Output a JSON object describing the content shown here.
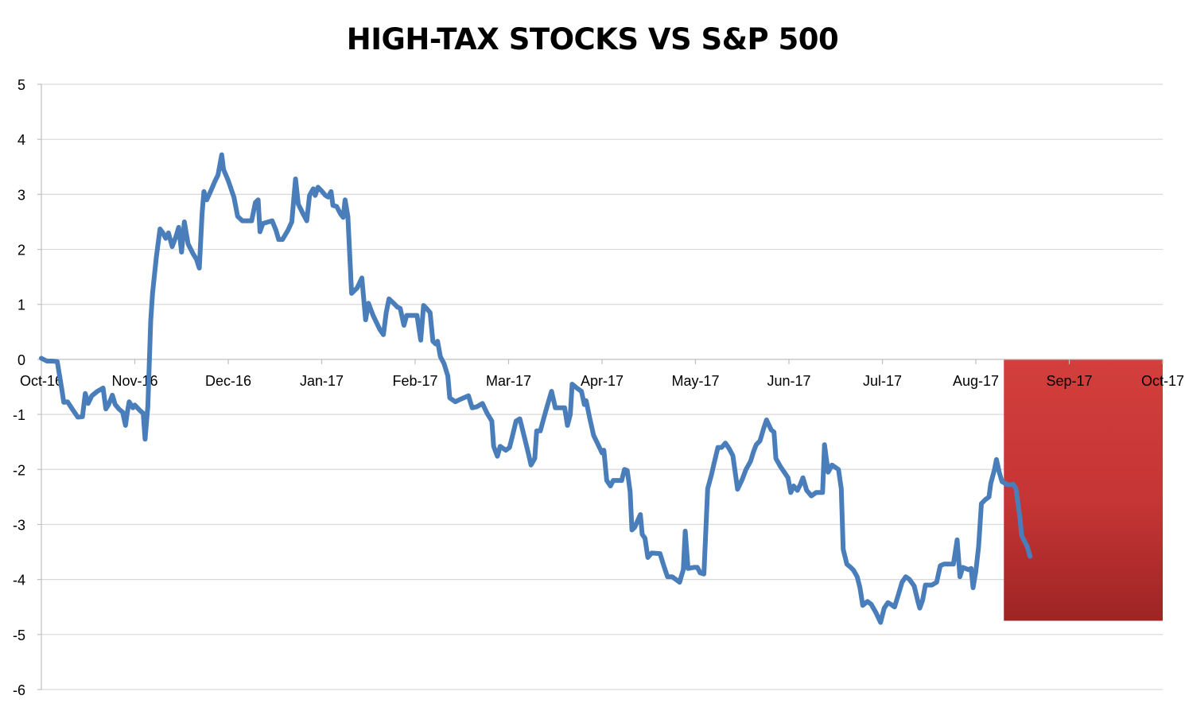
{
  "chart_data": {
    "type": "line",
    "title": "HIGH-TAX STOCKS VS S&P 500",
    "xlabel": "",
    "ylabel": "",
    "ylim": [
      -6,
      5
    ],
    "yticks": [
      5,
      4,
      3,
      2,
      1,
      0,
      -1,
      -2,
      -3,
      -4,
      -5,
      -6
    ],
    "grid": true,
    "legend": "none",
    "x_tick_labels": [
      "Oct-16",
      "Nov-16",
      "Dec-16",
      "Jan-17",
      "Feb-17",
      "Mar-17",
      "Apr-17",
      "May-17",
      "Jun-17",
      "Jul-17",
      "Aug-17",
      "Sep-17",
      "Oct-17"
    ],
    "highlight_region": {
      "from_month_index": 10.3,
      "to_month_index": 12.0,
      "y_from": 0,
      "y_to": -4.75,
      "color": "#cc3333"
    },
    "series": [
      {
        "color": "#4a7ebb",
        "points": [
          [
            0.0,
            0.02
          ],
          [
            0.06,
            -0.03
          ],
          [
            0.12,
            -0.03
          ],
          [
            0.17,
            -0.04
          ],
          [
            0.22,
            -0.55
          ],
          [
            0.24,
            -0.78
          ],
          [
            0.28,
            -0.77
          ],
          [
            0.33,
            -0.9
          ],
          [
            0.39,
            -1.05
          ],
          [
            0.44,
            -1.04
          ],
          [
            0.47,
            -0.62
          ],
          [
            0.5,
            -0.8
          ],
          [
            0.54,
            -0.66
          ],
          [
            0.6,
            -0.58
          ],
          [
            0.62,
            -0.56
          ],
          [
            0.66,
            -0.52
          ],
          [
            0.69,
            -0.9
          ],
          [
            0.72,
            -0.82
          ],
          [
            0.76,
            -0.65
          ],
          [
            0.79,
            -0.82
          ],
          [
            0.83,
            -0.9
          ],
          [
            0.87,
            -0.96
          ],
          [
            0.9,
            -1.2
          ],
          [
            0.92,
            -0.96
          ],
          [
            0.94,
            -0.77
          ],
          [
            0.98,
            -0.88
          ],
          [
            1.0,
            -0.83
          ],
          [
            1.05,
            -0.92
          ],
          [
            1.09,
            -0.98
          ],
          [
            1.11,
            -1.45
          ],
          [
            1.14,
            -0.85
          ],
          [
            1.17,
            0.7
          ],
          [
            1.19,
            1.2
          ],
          [
            1.23,
            1.85
          ],
          [
            1.27,
            2.37
          ],
          [
            1.3,
            2.3
          ],
          [
            1.33,
            2.2
          ],
          [
            1.36,
            2.3
          ],
          [
            1.4,
            2.05
          ],
          [
            1.44,
            2.23
          ],
          [
            1.47,
            2.4
          ],
          [
            1.5,
            1.95
          ],
          [
            1.53,
            2.5
          ],
          [
            1.57,
            2.1
          ],
          [
            1.62,
            1.93
          ],
          [
            1.66,
            1.82
          ],
          [
            1.69,
            1.66
          ],
          [
            1.72,
            2.65
          ],
          [
            1.74,
            3.05
          ],
          [
            1.77,
            2.9
          ],
          [
            1.81,
            3.05
          ],
          [
            1.86,
            3.25
          ],
          [
            1.89,
            3.35
          ],
          [
            1.93,
            3.72
          ],
          [
            1.95,
            3.45
          ],
          [
            2.0,
            3.25
          ],
          [
            2.06,
            2.95
          ],
          [
            2.1,
            2.6
          ],
          [
            2.15,
            2.52
          ],
          [
            2.25,
            2.52
          ],
          [
            2.29,
            2.85
          ],
          [
            2.32,
            2.9
          ],
          [
            2.34,
            2.32
          ],
          [
            2.37,
            2.47
          ],
          [
            2.47,
            2.52
          ],
          [
            2.51,
            2.35
          ],
          [
            2.54,
            2.18
          ],
          [
            2.58,
            2.18
          ],
          [
            2.64,
            2.35
          ],
          [
            2.68,
            2.5
          ],
          [
            2.72,
            3.28
          ],
          [
            2.75,
            2.82
          ],
          [
            2.8,
            2.65
          ],
          [
            2.84,
            2.52
          ],
          [
            2.87,
            2.98
          ],
          [
            2.91,
            3.1
          ],
          [
            2.93,
            2.98
          ],
          [
            2.96,
            3.13
          ],
          [
            3.0,
            3.06
          ],
          [
            3.04,
            2.98
          ],
          [
            3.07,
            2.95
          ],
          [
            3.1,
            3.05
          ],
          [
            3.12,
            2.8
          ],
          [
            3.16,
            2.78
          ],
          [
            3.2,
            2.65
          ],
          [
            3.23,
            2.58
          ],
          [
            3.25,
            2.9
          ],
          [
            3.28,
            2.6
          ],
          [
            3.32,
            1.2
          ],
          [
            3.38,
            1.3
          ],
          [
            3.43,
            1.48
          ],
          [
            3.47,
            0.72
          ],
          [
            3.5,
            1.02
          ],
          [
            3.55,
            0.8
          ],
          [
            3.62,
            0.55
          ],
          [
            3.66,
            0.45
          ],
          [
            3.69,
            0.85
          ],
          [
            3.72,
            1.1
          ],
          [
            3.77,
            1.02
          ],
          [
            3.81,
            0.95
          ],
          [
            3.84,
            0.93
          ],
          [
            3.88,
            0.62
          ],
          [
            3.91,
            0.8
          ],
          [
            3.95,
            0.8
          ],
          [
            4.02,
            0.8
          ],
          [
            4.06,
            0.35
          ],
          [
            4.09,
            0.98
          ],
          [
            4.12,
            0.93
          ],
          [
            4.16,
            0.85
          ],
          [
            4.19,
            0.33
          ],
          [
            4.22,
            0.28
          ],
          [
            4.24,
            0.33
          ],
          [
            4.27,
            0.05
          ],
          [
            4.31,
            -0.08
          ],
          [
            4.35,
            -0.3
          ],
          [
            4.37,
            -0.7
          ],
          [
            4.43,
            -0.77
          ],
          [
            4.49,
            -0.72
          ],
          [
            4.57,
            -0.66
          ],
          [
            4.61,
            -0.88
          ],
          [
            4.66,
            -0.86
          ],
          [
            4.72,
            -0.8
          ],
          [
            4.77,
            -0.98
          ],
          [
            4.82,
            -1.12
          ],
          [
            4.84,
            -1.58
          ],
          [
            4.88,
            -1.76
          ],
          [
            4.91,
            -1.58
          ],
          [
            4.97,
            -1.65
          ],
          [
            5.01,
            -1.6
          ],
          [
            5.04,
            -1.4
          ],
          [
            5.08,
            -1.12
          ],
          [
            5.12,
            -1.08
          ],
          [
            5.15,
            -1.28
          ],
          [
            5.21,
            -1.7
          ],
          [
            5.24,
            -1.92
          ],
          [
            5.28,
            -1.8
          ],
          [
            5.3,
            -1.3
          ],
          [
            5.34,
            -1.3
          ],
          [
            5.38,
            -1.05
          ],
          [
            5.43,
            -0.75
          ],
          [
            5.46,
            -0.58
          ],
          [
            5.5,
            -0.88
          ],
          [
            5.55,
            -0.88
          ],
          [
            5.6,
            -0.88
          ],
          [
            5.63,
            -1.2
          ],
          [
            5.66,
            -1.0
          ],
          [
            5.68,
            -0.45
          ],
          [
            5.73,
            -0.52
          ],
          [
            5.78,
            -0.58
          ],
          [
            5.81,
            -0.82
          ],
          [
            5.83,
            -0.75
          ],
          [
            5.87,
            -1.08
          ],
          [
            5.91,
            -1.38
          ],
          [
            5.95,
            -1.52
          ],
          [
            6.0,
            -1.7
          ],
          [
            6.02,
            -1.65
          ],
          [
            6.05,
            -2.2
          ],
          [
            6.09,
            -2.3
          ],
          [
            6.12,
            -2.2
          ],
          [
            6.21,
            -2.2
          ],
          [
            6.24,
            -2.0
          ],
          [
            6.27,
            -2.02
          ],
          [
            6.3,
            -2.4
          ],
          [
            6.32,
            -3.1
          ],
          [
            6.35,
            -3.05
          ],
          [
            6.41,
            -2.82
          ],
          [
            6.43,
            -3.18
          ],
          [
            6.46,
            -3.25
          ],
          [
            6.49,
            -3.6
          ],
          [
            6.53,
            -3.52
          ],
          [
            6.62,
            -3.53
          ],
          [
            6.66,
            -3.75
          ],
          [
            6.7,
            -3.95
          ],
          [
            6.75,
            -3.95
          ],
          [
            6.79,
            -4.0
          ],
          [
            6.83,
            -4.05
          ],
          [
            6.87,
            -3.82
          ],
          [
            6.89,
            -3.12
          ],
          [
            6.92,
            -3.8
          ],
          [
            6.98,
            -3.78
          ],
          [
            7.02,
            -3.78
          ],
          [
            7.05,
            -3.88
          ],
          [
            7.09,
            -3.9
          ],
          [
            7.13,
            -2.35
          ],
          [
            7.17,
            -2.1
          ],
          [
            7.2,
            -1.88
          ],
          [
            7.24,
            -1.6
          ],
          [
            7.28,
            -1.6
          ],
          [
            7.32,
            -1.52
          ],
          [
            7.36,
            -1.62
          ],
          [
            7.4,
            -1.75
          ],
          [
            7.45,
            -2.36
          ],
          [
            7.5,
            -2.18
          ],
          [
            7.54,
            -2.0
          ],
          [
            7.59,
            -1.85
          ],
          [
            7.62,
            -1.68
          ],
          [
            7.65,
            -1.55
          ],
          [
            7.69,
            -1.48
          ],
          [
            7.73,
            -1.25
          ],
          [
            7.76,
            -1.1
          ],
          [
            7.81,
            -1.28
          ],
          [
            7.84,
            -1.32
          ],
          [
            7.86,
            -1.8
          ],
          [
            7.91,
            -1.95
          ],
          [
            7.95,
            -2.05
          ],
          [
            7.99,
            -2.15
          ],
          [
            8.02,
            -2.42
          ],
          [
            8.05,
            -2.3
          ],
          [
            8.09,
            -2.38
          ],
          [
            8.12,
            -2.28
          ],
          [
            8.15,
            -2.15
          ],
          [
            8.19,
            -2.38
          ],
          [
            8.24,
            -2.48
          ],
          [
            8.29,
            -2.42
          ],
          [
            8.36,
            -2.42
          ],
          [
            8.38,
            -1.55
          ],
          [
            8.42,
            -2.05
          ],
          [
            8.46,
            -1.92
          ],
          [
            8.53,
            -2.0
          ],
          [
            8.56,
            -2.35
          ],
          [
            8.58,
            -3.45
          ],
          [
            8.62,
            -3.72
          ],
          [
            8.66,
            -3.78
          ],
          [
            8.69,
            -3.83
          ],
          [
            8.73,
            -3.95
          ],
          [
            8.76,
            -4.15
          ],
          [
            8.79,
            -4.47
          ],
          [
            8.84,
            -4.4
          ],
          [
            8.88,
            -4.45
          ],
          [
            8.93,
            -4.6
          ],
          [
            8.98,
            -4.78
          ],
          [
            9.02,
            -4.52
          ],
          [
            9.06,
            -4.42
          ],
          [
            9.09,
            -4.45
          ],
          [
            9.13,
            -4.5
          ],
          [
            9.17,
            -4.28
          ],
          [
            9.21,
            -4.05
          ],
          [
            9.25,
            -3.95
          ],
          [
            9.29,
            -4.0
          ],
          [
            9.34,
            -4.12
          ],
          [
            9.38,
            -4.4
          ],
          [
            9.4,
            -4.52
          ],
          [
            9.43,
            -4.38
          ],
          [
            9.46,
            -4.1
          ],
          [
            9.53,
            -4.1
          ],
          [
            9.58,
            -4.05
          ],
          [
            9.62,
            -3.75
          ],
          [
            9.66,
            -3.72
          ],
          [
            9.76,
            -3.72
          ],
          [
            9.8,
            -3.28
          ],
          [
            9.83,
            -3.95
          ],
          [
            9.86,
            -3.78
          ],
          [
            9.92,
            -3.82
          ],
          [
            9.95,
            -3.8
          ],
          [
            9.97,
            -4.15
          ],
          [
            10.0,
            -3.85
          ],
          [
            10.03,
            -3.4
          ],
          [
            10.06,
            -2.62
          ],
          [
            10.1,
            -2.55
          ],
          [
            10.14,
            -2.5
          ],
          [
            10.16,
            -2.25
          ],
          [
            10.2,
            -2.0
          ],
          [
            10.22,
            -1.82
          ],
          [
            10.25,
            -2.05
          ],
          [
            10.28,
            -2.22
          ],
          [
            10.34,
            -2.28
          ],
          [
            10.4,
            -2.27
          ],
          [
            10.43,
            -2.35
          ],
          [
            10.47,
            -2.85
          ],
          [
            10.49,
            -3.2
          ],
          [
            10.55,
            -3.4
          ],
          [
            10.58,
            -3.58
          ]
        ]
      }
    ]
  }
}
